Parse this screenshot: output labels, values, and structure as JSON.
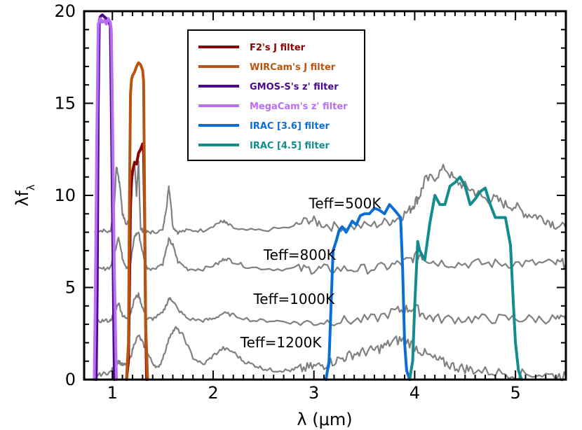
{
  "chart_data": {
    "type": "line",
    "xlabel": "λ (μm)",
    "ylabel": "λfλ",
    "ylabel_main": "λf",
    "ylabel_sub": "λ",
    "xlim": [
      0.72,
      5.5
    ],
    "ylim": [
      0,
      20
    ],
    "xticks": [
      {
        "value": 1,
        "label": "1"
      },
      {
        "value": 2,
        "label": "2"
      },
      {
        "value": 3,
        "label": "3"
      },
      {
        "value": 4,
        "label": "4"
      },
      {
        "value": 5,
        "label": "5"
      }
    ],
    "yticks": [
      {
        "value": 0,
        "label": "0"
      },
      {
        "value": 5,
        "label": "5"
      },
      {
        "value": 10,
        "label": "10"
      },
      {
        "value": 15,
        "label": "15"
      },
      {
        "value": 20,
        "label": "20"
      }
    ],
    "annotations": [
      {
        "text": "Teff=500K",
        "x": 2.95,
        "y": 9.3
      },
      {
        "text": "Teff=800K",
        "x": 2.5,
        "y": 6.5
      },
      {
        "text": "Teff=1000K",
        "x": 2.4,
        "y": 4.1
      },
      {
        "text": "Teff=1200K",
        "x": 2.27,
        "y": 1.75
      }
    ],
    "spectra": [
      {
        "name": "Teff=500K",
        "color": "#808080",
        "x": [
          0.82,
          0.9,
          0.98,
          1.02,
          1.04,
          1.06,
          1.08,
          1.1,
          1.14,
          1.18,
          1.2,
          1.22,
          1.24,
          1.26,
          1.28,
          1.3,
          1.34,
          1.4,
          1.5,
          1.54,
          1.56,
          1.58,
          1.6,
          1.65,
          1.75,
          1.9,
          2.05,
          2.1,
          2.15,
          2.25,
          2.5,
          2.8,
          2.95,
          3.05,
          3.2,
          3.4,
          3.6,
          3.75,
          3.85,
          3.95,
          4.0,
          4.05,
          4.1,
          4.2,
          4.3,
          4.4,
          4.5,
          4.6,
          4.7,
          4.8,
          4.9,
          5.0,
          5.1,
          5.2,
          5.3,
          5.4,
          5.5
        ],
        "y": [
          8.0,
          8.1,
          8.0,
          9.5,
          11.6,
          11.0,
          10.3,
          9.0,
          8.4,
          8.8,
          11.0,
          11.8,
          10.0,
          11.8,
          8.2,
          8.1,
          8.0,
          8.0,
          8.1,
          9.5,
          10.5,
          9.6,
          8.3,
          8.0,
          8.1,
          8.1,
          8.5,
          8.6,
          8.4,
          8.1,
          8.1,
          8.3,
          8.7,
          8.5,
          8.3,
          8.3,
          8.4,
          8.6,
          8.8,
          9.2,
          9.6,
          10.0,
          10.8,
          11.0,
          11.5,
          10.8,
          10.5,
          10.2,
          9.8,
          9.8,
          9.5,
          9.4,
          9.0,
          8.9,
          8.7,
          8.4,
          8.2
        ]
      },
      {
        "name": "Teff=800K",
        "color": "#808080",
        "x": [
          0.82,
          0.9,
          0.98,
          1.02,
          1.06,
          1.1,
          1.14,
          1.18,
          1.22,
          1.26,
          1.3,
          1.34,
          1.4,
          1.5,
          1.56,
          1.6,
          1.65,
          1.75,
          1.9,
          2.05,
          2.12,
          2.2,
          2.35,
          2.6,
          2.85,
          3.0,
          3.1,
          3.3,
          3.5,
          3.7,
          3.85,
          3.95,
          4.05,
          4.1,
          4.2,
          4.4,
          4.6,
          4.8,
          5.0,
          5.2,
          5.4,
          5.5
        ],
        "y": [
          6.0,
          6.0,
          6.1,
          6.8,
          7.8,
          6.6,
          6.1,
          6.3,
          7.8,
          8.0,
          6.9,
          6.1,
          6.0,
          6.3,
          7.6,
          7.3,
          6.4,
          6.0,
          6.0,
          6.3,
          6.6,
          6.4,
          6.1,
          6.0,
          6.0,
          6.0,
          6.0,
          6.0,
          6.0,
          6.1,
          6.3,
          6.5,
          6.8,
          6.6,
          6.4,
          6.3,
          6.3,
          6.3,
          6.3,
          6.3,
          6.3,
          6.3
        ]
      },
      {
        "name": "Teff=1000K",
        "color": "#808080",
        "x": [
          0.82,
          0.9,
          0.98,
          1.02,
          1.06,
          1.1,
          1.14,
          1.18,
          1.22,
          1.26,
          1.3,
          1.34,
          1.4,
          1.5,
          1.56,
          1.6,
          1.65,
          1.75,
          1.9,
          2.0,
          2.1,
          2.2,
          2.4,
          2.6,
          2.8,
          3.0,
          3.2,
          3.4,
          3.6,
          3.8,
          3.9,
          4.0,
          4.1,
          4.2,
          4.4,
          4.6,
          4.8,
          5.0,
          5.2,
          5.4,
          5.5
        ],
        "y": [
          3.1,
          3.2,
          3.2,
          3.6,
          4.2,
          3.5,
          3.3,
          3.6,
          4.4,
          4.6,
          3.9,
          3.3,
          3.3,
          3.6,
          4.4,
          4.3,
          3.8,
          3.3,
          3.2,
          3.3,
          3.6,
          3.5,
          3.2,
          3.2,
          3.1,
          3.1,
          3.2,
          3.2,
          3.3,
          3.7,
          3.8,
          3.9,
          3.5,
          3.3,
          3.3,
          3.3,
          3.3,
          3.3,
          3.3,
          3.3,
          3.2
        ]
      },
      {
        "name": "Teff=1200K",
        "color": "#808080",
        "x": [
          0.82,
          0.9,
          0.98,
          1.02,
          1.06,
          1.1,
          1.14,
          1.18,
          1.22,
          1.26,
          1.3,
          1.34,
          1.4,
          1.46,
          1.52,
          1.58,
          1.63,
          1.7,
          1.8,
          1.9,
          2.0,
          2.1,
          2.2,
          2.3,
          2.4,
          2.5,
          2.6,
          2.7,
          2.8,
          2.9,
          3.0,
          3.1,
          3.2,
          3.3,
          3.4,
          3.5,
          3.6,
          3.7,
          3.8,
          3.9,
          4.0,
          4.1,
          4.2,
          4.3,
          4.4,
          4.5,
          4.6,
          4.8,
          5.0,
          5.2,
          5.4,
          5.5
        ],
        "y": [
          0.2,
          0.3,
          0.4,
          0.7,
          1.0,
          0.8,
          0.8,
          1.2,
          2.0,
          2.4,
          2.0,
          1.5,
          0.9,
          0.6,
          1.5,
          2.5,
          2.8,
          2.4,
          1.2,
          0.8,
          1.3,
          1.7,
          1.5,
          1.0,
          0.8,
          0.6,
          0.5,
          0.5,
          0.5,
          0.6,
          0.7,
          0.8,
          1.0,
          1.2,
          1.4,
          1.5,
          1.6,
          1.8,
          2.1,
          2.2,
          1.8,
          1.4,
          1.1,
          0.9,
          0.7,
          0.6,
          0.5,
          0.4,
          0.3,
          0.3,
          0.2,
          0.2
        ]
      }
    ],
    "filters": [
      {
        "name": "GMOS-S's z' filter",
        "label": "GMOS-S's z' filter",
        "color": "#4b0a8c",
        "x": [
          0.84,
          0.85,
          0.86,
          0.87,
          0.88,
          0.9,
          0.92,
          0.94,
          0.96,
          0.98,
          1.0,
          1.02
        ],
        "y": [
          0,
          5,
          15,
          19.5,
          19.7,
          19.8,
          19.7,
          19.6,
          19.5,
          19.2,
          10,
          0
        ]
      },
      {
        "name": "MegaCam's z' filter",
        "label": "MegaCam's z' filter",
        "color": "#b96ef5",
        "x": [
          0.82,
          0.83,
          0.845,
          0.86,
          0.88,
          0.9,
          0.92,
          0.94,
          0.96,
          0.98,
          0.99,
          1.0,
          1.02,
          1.04
        ],
        "y": [
          0,
          4,
          13,
          19.3,
          19.6,
          19.4,
          19.5,
          19.3,
          19.6,
          19.4,
          19.0,
          15,
          6,
          0
        ]
      },
      {
        "name": "F2's J filter",
        "label": "F2's J filter",
        "color": "#8b0000",
        "x": [
          1.14,
          1.16,
          1.17,
          1.18,
          1.19,
          1.2,
          1.22,
          1.24,
          1.26,
          1.28,
          1.3,
          1.31,
          1.32,
          1.33,
          1.34
        ],
        "y": [
          0,
          1,
          5,
          9.5,
          10.8,
          11.3,
          11.8,
          11.7,
          12.3,
          12.5,
          12.8,
          12.3,
          9,
          3,
          0
        ]
      },
      {
        "name": "WIRCam's J filter",
        "label": "WIRCam's J filter",
        "color": "#b85410",
        "x": [
          1.14,
          1.16,
          1.17,
          1.18,
          1.19,
          1.2,
          1.22,
          1.24,
          1.26,
          1.28,
          1.3,
          1.31,
          1.32,
          1.33,
          1.35
        ],
        "y": [
          0,
          2,
          10,
          15.5,
          16.3,
          16.5,
          16.7,
          17.0,
          17.2,
          17.1,
          16.8,
          16.2,
          10,
          3,
          0
        ]
      },
      {
        "name": "IRAC [3.6] filter",
        "label": "IRAC [3.6] filter",
        "color": "#0a6ed6",
        "x": [
          3.12,
          3.15,
          3.17,
          3.19,
          3.22,
          3.25,
          3.28,
          3.32,
          3.38,
          3.42,
          3.46,
          3.5,
          3.55,
          3.6,
          3.65,
          3.7,
          3.75,
          3.8,
          3.86,
          3.88,
          3.9,
          3.92,
          3.95
        ],
        "y": [
          0,
          1,
          4,
          7,
          7.5,
          8.1,
          8.3,
          8.0,
          8.6,
          8.4,
          8.9,
          9.0,
          9.0,
          9.3,
          9.2,
          9.0,
          9.5,
          9.2,
          8.8,
          6,
          2,
          0.5,
          0
        ]
      },
      {
        "name": "IRAC [4.5] filter",
        "label": "IRAC [4.5] filter",
        "color": "#128c8c",
        "x": [
          3.95,
          3.98,
          4.0,
          4.03,
          4.05,
          4.1,
          4.15,
          4.2,
          4.25,
          4.3,
          4.35,
          4.4,
          4.45,
          4.5,
          4.55,
          4.6,
          4.65,
          4.7,
          4.75,
          4.8,
          4.85,
          4.9,
          4.95,
          4.98,
          5.0,
          5.03,
          5.06
        ],
        "y": [
          0,
          1,
          4,
          7.5,
          7.0,
          6.5,
          8.5,
          10.0,
          9.5,
          9.5,
          10.5,
          10.7,
          11.0,
          10.5,
          9.5,
          9.8,
          10.2,
          10.4,
          9.5,
          8.8,
          8.8,
          8.8,
          7.3,
          4,
          2,
          0.5,
          0
        ]
      }
    ],
    "legend": {
      "placement": "top-center",
      "entries": [
        {
          "label": "F2's J filter",
          "color": "#8b0000"
        },
        {
          "label": "WIRCam's J filter",
          "color": "#b85410"
        },
        {
          "label": "GMOS-S's z' filter",
          "color": "#4b0a8c"
        },
        {
          "label": "MegaCam's z' filter",
          "color": "#b96ef5"
        },
        {
          "label": "IRAC [3.6] filter",
          "color": "#0a6ed6"
        },
        {
          "label": "IRAC [4.5] filter",
          "color": "#128c8c"
        }
      ]
    }
  }
}
